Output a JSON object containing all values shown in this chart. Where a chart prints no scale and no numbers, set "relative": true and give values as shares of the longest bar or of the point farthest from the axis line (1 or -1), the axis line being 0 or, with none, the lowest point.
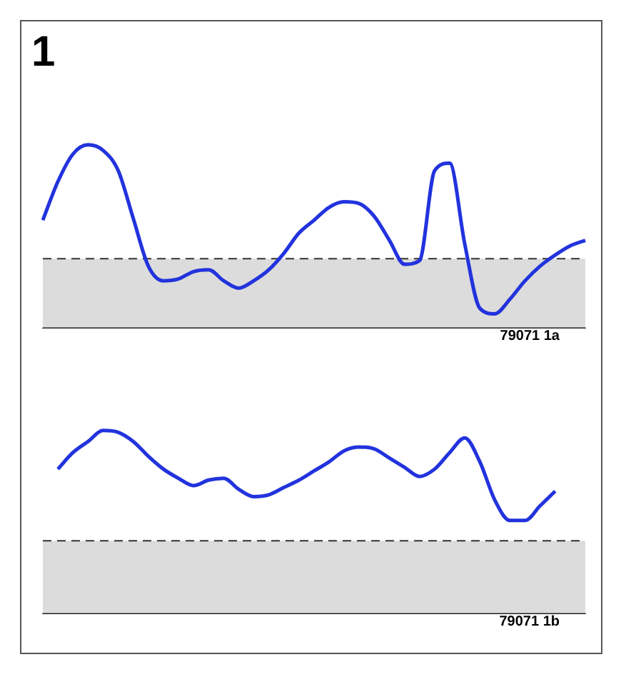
{
  "chart_data": [
    {
      "type": "line",
      "title": "1",
      "relative": true,
      "categories": [
        null,
        null,
        null,
        null,
        null,
        null,
        null,
        null,
        null,
        null,
        null,
        null,
        null,
        null,
        null,
        null,
        null,
        null,
        null,
        null,
        null,
        null,
        null,
        null,
        null,
        null,
        null,
        null,
        null,
        null,
        null,
        null,
        null,
        null,
        null,
        null,
        null
      ],
      "series": [
        {
          "color": "#2233dd",
          "values": [
            0.59,
            0.8,
            0.95,
            1,
            0.97,
            0.86,
            0.6,
            0.34,
            0.26,
            0.27,
            0.31,
            0.32,
            0.26,
            0.22,
            0.26,
            0.32,
            0.41,
            0.52,
            0.59,
            0.66,
            0.69,
            0.68,
            0.61,
            0.48,
            0.35,
            0.37,
            0.86,
            0.9,
            0.46,
            0.11,
            0.08,
            0.16,
            0.26,
            0.34,
            0.4,
            0.45,
            0.48
          ]
        }
      ],
      "bands": [
        {
          "axis": "y",
          "from": 0,
          "to": 0.38,
          "color": "#dcdcdc"
        }
      ],
      "ref_lines": [
        {
          "axis": "y",
          "value": 0.38,
          "color": "#333333",
          "line_style": "dashed"
        }
      ],
      "annotations": [
        "79071 1a"
      ],
      "grid": false,
      "legend": false,
      "marker": "none",
      "line_style": "solid",
      "tick_labels": false
    },
    {
      "type": "line",
      "relative": true,
      "categories": [
        null,
        null,
        null,
        null,
        null,
        null,
        null,
        null,
        null,
        null,
        null,
        null,
        null,
        null,
        null,
        null,
        null,
        null,
        null,
        null,
        null,
        null,
        null,
        null,
        null,
        null,
        null,
        null,
        null,
        null,
        null,
        null,
        null,
        null,
        null,
        null,
        null
      ],
      "series": [
        {
          "color": "#2233dd",
          "values": [
            null,
            0.79,
            0.88,
            0.94,
            1,
            0.99,
            0.94,
            0.86,
            0.79,
            0.74,
            0.7,
            0.73,
            0.74,
            0.68,
            0.64,
            0.65,
            0.69,
            0.73,
            0.78,
            0.83,
            0.89,
            0.91,
            0.9,
            0.85,
            0.8,
            0.75,
            0.79,
            0.88,
            0.96,
            0.83,
            0.62,
            0.51,
            0.51,
            0.59,
            0.67,
            null,
            null
          ]
        }
      ],
      "bands": [
        {
          "axis": "y",
          "from": 0,
          "to": 0.4,
          "color": "#dcdcdc"
        }
      ],
      "ref_lines": [
        {
          "axis": "y",
          "value": 0.4,
          "color": "#333333",
          "line_style": "dashed"
        }
      ],
      "annotations": [
        "79071 1b"
      ],
      "grid": false,
      "legend": false,
      "marker": "none",
      "line_style": "solid",
      "tick_labels": false
    }
  ]
}
